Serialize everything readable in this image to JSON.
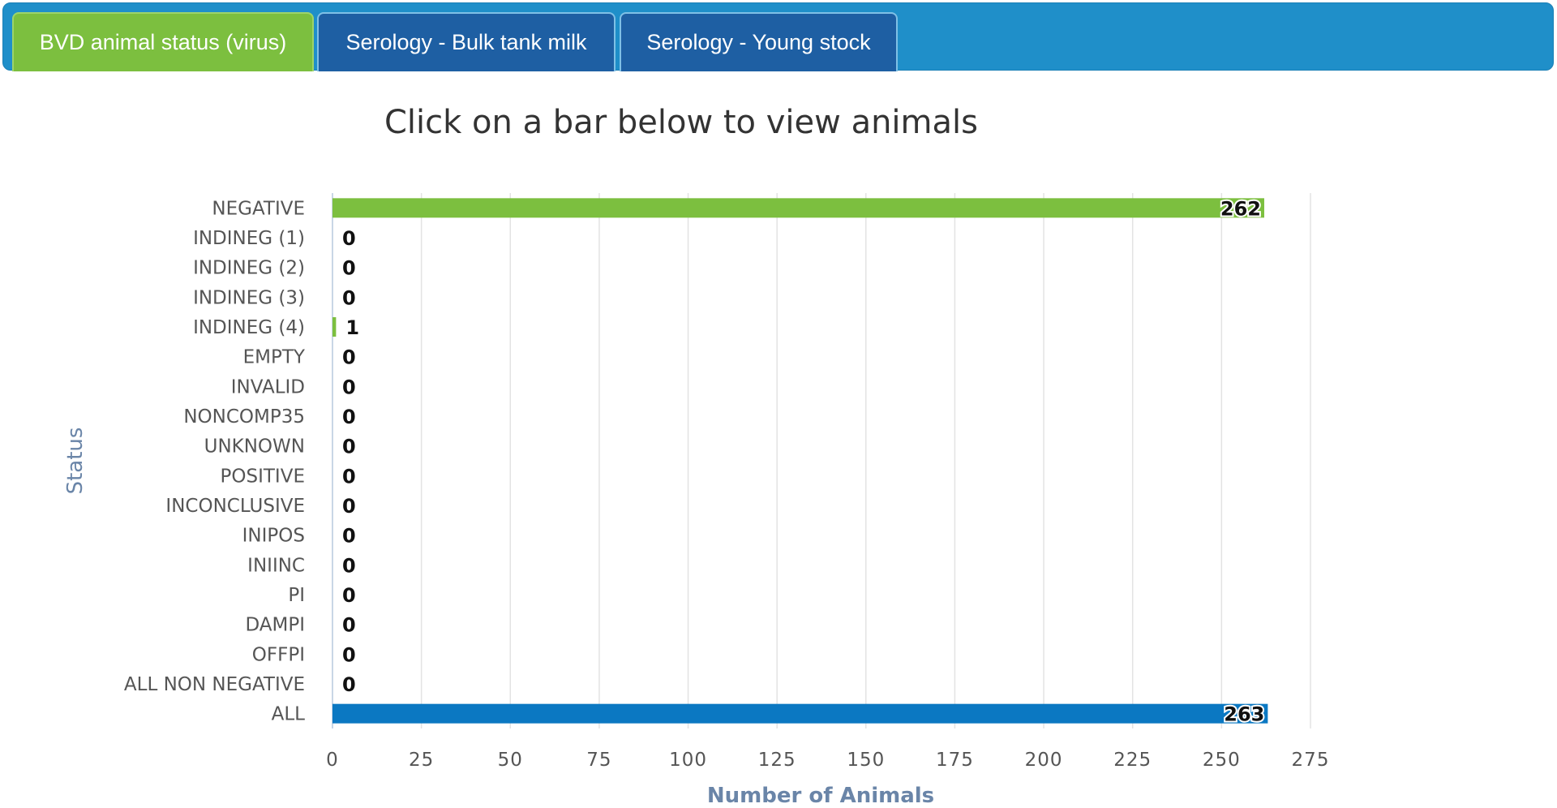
{
  "tabs": [
    {
      "label": "BVD animal status (virus)",
      "active": true
    },
    {
      "label": "Serology - Bulk tank milk",
      "active": false
    },
    {
      "label": "Serology - Young stock",
      "active": false
    }
  ],
  "colors": {
    "tab_active": "#7cbf3f",
    "tab_inactive": "#1e5fa3",
    "tab_bar": "#1f8fc9",
    "bar_green": "#7cbf3f",
    "bar_blue": "#0b78c2",
    "axis_title": "#6a85a8"
  },
  "chart_data": {
    "type": "bar",
    "orientation": "horizontal",
    "title": "Click on a bar below to view animals",
    "xlabel": "Number of Animals",
    "ylabel": "Status",
    "xlim": [
      0,
      275
    ],
    "xticks": [
      0,
      25,
      50,
      75,
      100,
      125,
      150,
      175,
      200,
      225,
      250,
      275
    ],
    "grid": true,
    "legend": "none",
    "categories": [
      "NEGATIVE",
      "INDINEG (1)",
      "INDINEG (2)",
      "INDINEG (3)",
      "INDINEG (4)",
      "EMPTY",
      "INVALID",
      "NONCOMP35",
      "UNKNOWN",
      "POSITIVE",
      "INCONCLUSIVE",
      "INIPOS",
      "INIINC",
      "PI",
      "DAMPI",
      "OFFPI",
      "ALL NON NEGATIVE",
      "ALL"
    ],
    "values": [
      262,
      0,
      0,
      0,
      1,
      0,
      0,
      0,
      0,
      0,
      0,
      0,
      0,
      0,
      0,
      0,
      0,
      263
    ],
    "bar_colors": [
      "#7cbf3f",
      "#7cbf3f",
      "#7cbf3f",
      "#7cbf3f",
      "#7cbf3f",
      "#7cbf3f",
      "#7cbf3f",
      "#7cbf3f",
      "#7cbf3f",
      "#7cbf3f",
      "#7cbf3f",
      "#7cbf3f",
      "#7cbf3f",
      "#7cbf3f",
      "#7cbf3f",
      "#7cbf3f",
      "#7cbf3f",
      "#0b78c2"
    ]
  }
}
